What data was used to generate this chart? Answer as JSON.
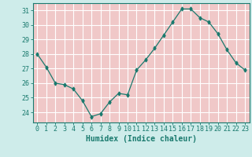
{
  "x": [
    0,
    1,
    2,
    3,
    4,
    5,
    6,
    7,
    8,
    9,
    10,
    11,
    12,
    13,
    14,
    15,
    16,
    17,
    18,
    19,
    20,
    21,
    22,
    23
  ],
  "y": [
    28.0,
    27.1,
    26.0,
    25.9,
    25.6,
    24.8,
    23.7,
    23.9,
    24.7,
    25.3,
    25.2,
    26.9,
    27.6,
    28.4,
    29.3,
    30.2,
    31.1,
    31.1,
    30.5,
    30.2,
    29.4,
    28.3,
    27.4,
    26.9
  ],
  "line_color": "#1a7a6e",
  "marker": "d",
  "marker_size": 2.5,
  "bg_color": "#ceecea",
  "grid_h_color": "#ffffff",
  "grid_v_color": "#f0c8c8",
  "xlabel": "Humidex (Indice chaleur)",
  "xlim": [
    -0.5,
    23.5
  ],
  "ylim": [
    23.3,
    31.5
  ],
  "yticks": [
    24,
    25,
    26,
    27,
    28,
    29,
    30,
    31
  ],
  "xticks": [
    0,
    1,
    2,
    3,
    4,
    5,
    6,
    7,
    8,
    9,
    10,
    11,
    12,
    13,
    14,
    15,
    16,
    17,
    18,
    19,
    20,
    21,
    22,
    23
  ],
  "tick_color": "#1a7a6e",
  "label_fontsize": 7,
  "tick_fontsize": 6
}
